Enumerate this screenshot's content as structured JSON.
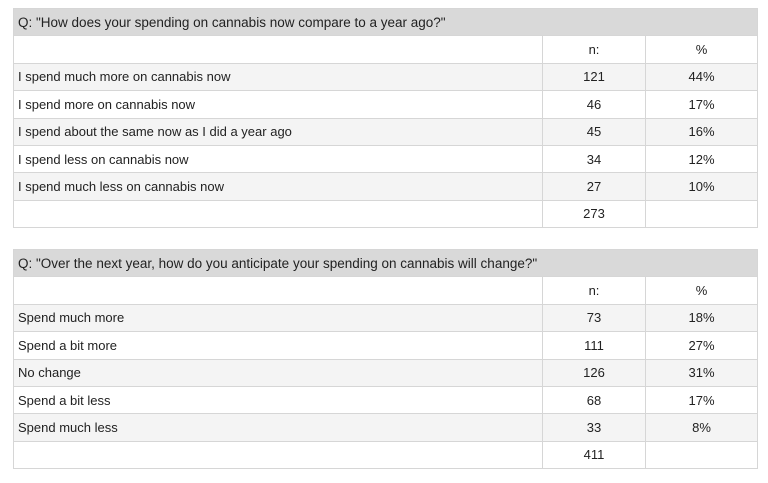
{
  "tables": [
    {
      "question": "Q: \"How does your spending on cannabis now compare to a year ago?\"",
      "header": {
        "n": "n:",
        "pct": "%"
      },
      "rows": [
        {
          "label": "I spend much more on cannabis now",
          "n": "121",
          "pct": "44%"
        },
        {
          "label": "I spend more on cannabis now",
          "n": "46",
          "pct": "17%"
        },
        {
          "label": "I spend about the same now as I did a year ago",
          "n": "45",
          "pct": "16%"
        },
        {
          "label": "I spend less on cannabis now",
          "n": "34",
          "pct": "12%"
        },
        {
          "label": "I spend much less on cannabis now",
          "n": "27",
          "pct": "10%"
        }
      ],
      "total": "273"
    },
    {
      "question": "Q: \"Over the next year, how do you anticipate your spending on cannabis will change?\"",
      "header": {
        "n": "n:",
        "pct": "%"
      },
      "rows": [
        {
          "label": "Spend much more",
          "n": "73",
          "pct": "18%"
        },
        {
          "label": "Spend a bit more",
          "n": "111",
          "pct": "27%"
        },
        {
          "label": "No change",
          "n": "126",
          "pct": "31%"
        },
        {
          "label": "Spend a bit less",
          "n": "68",
          "pct": "17%"
        },
        {
          "label": "Spend much less",
          "n": "33",
          "pct": "8%"
        }
      ],
      "total": "411"
    }
  ]
}
